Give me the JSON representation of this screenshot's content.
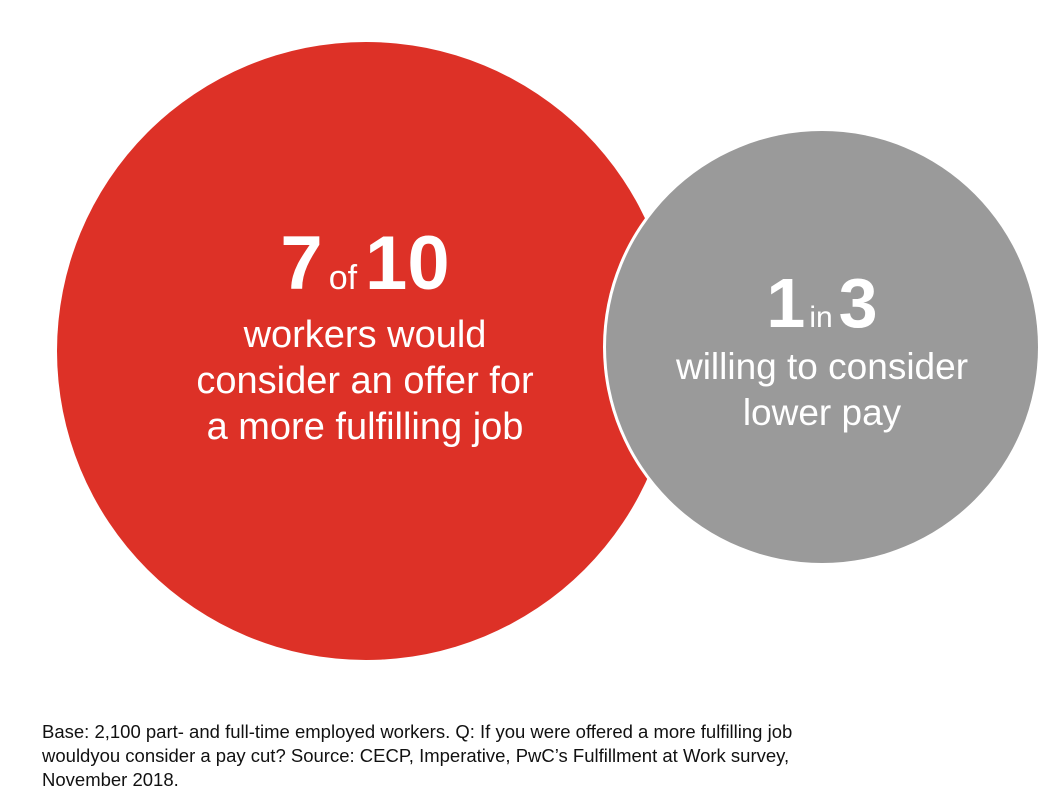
{
  "chart_data": {
    "type": "bubble",
    "stats": [
      {
        "number_a": "7",
        "connector": "of",
        "number_b": "10",
        "text_lines": [
          "workers would",
          "consider an offer for",
          "a more fulfilling job"
        ],
        "value": 0.7,
        "color": "#dd3127"
      },
      {
        "number_a": "1",
        "connector": "in",
        "number_b": "3",
        "text_lines": [
          "willing to consider",
          "lower pay"
        ],
        "value": 0.3333,
        "color": "#9a9a9a"
      }
    ],
    "footnote_lines": [
      "Base: 2,100 part- and full-time employed workers. Q: If you were offered a more fulfilling job",
      "wouldyou consider a pay cut? Source: CECP, Imperative, PwC’s Fulfillment at Work survey,",
      "November 2018."
    ]
  }
}
